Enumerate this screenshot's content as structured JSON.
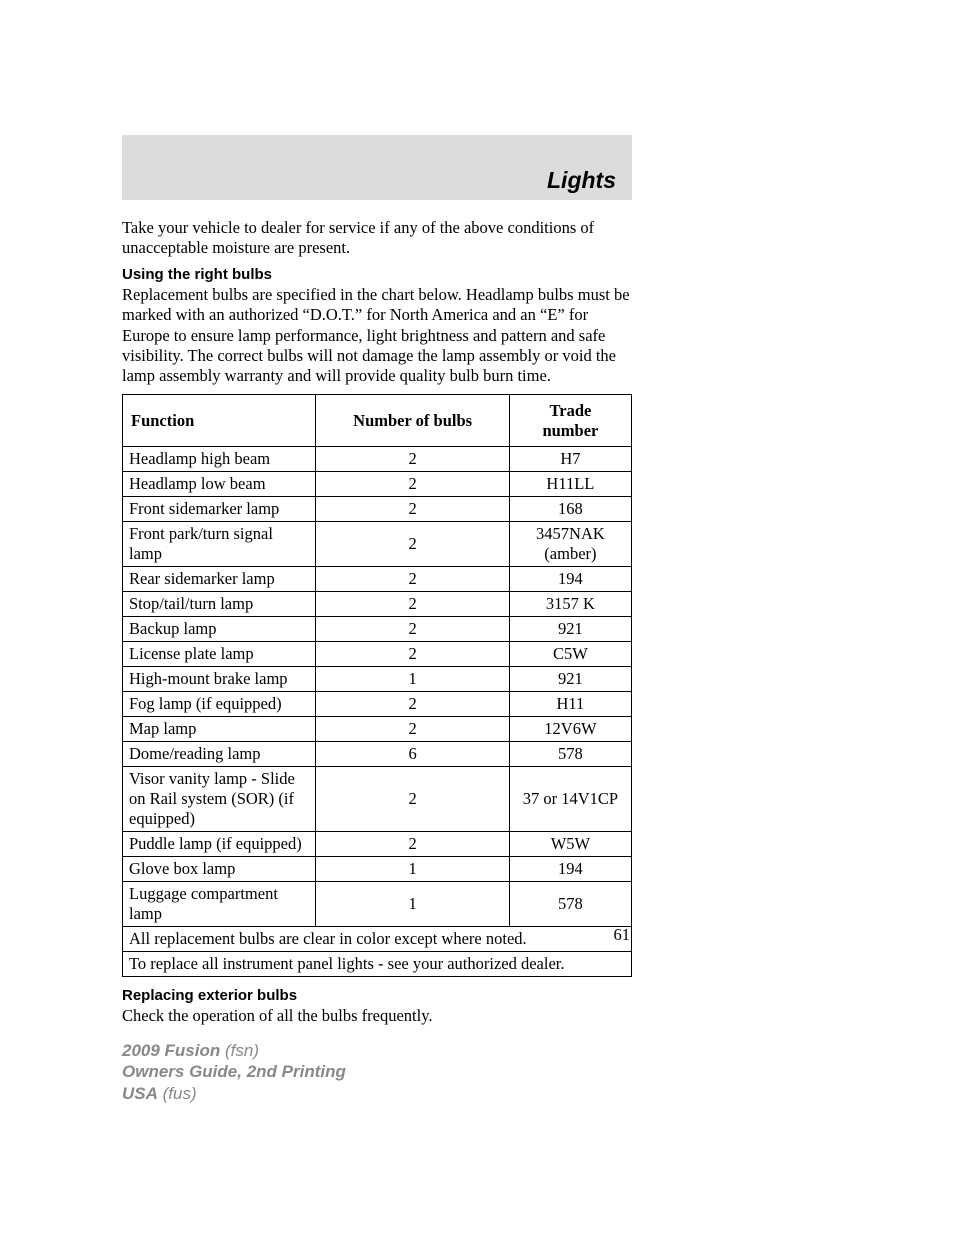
{
  "header": {
    "title": "Lights"
  },
  "intro": "Take your vehicle to dealer for service if any of the above conditions of unacceptable moisture are present.",
  "section1": {
    "heading": "Using the right bulbs",
    "body": "Replacement bulbs are specified in the chart below. Headlamp bulbs must be marked with an authorized “D.O.T.” for North America and an “E” for Europe to ensure lamp performance, light brightness and pattern and safe visibility. The correct bulbs will not damage the lamp assembly or void the lamp assembly warranty and will provide quality bulb burn time."
  },
  "table": {
    "columns": [
      "Function",
      "Number of bulbs",
      "Trade number"
    ],
    "rows": [
      [
        "Headlamp high beam",
        "2",
        "H7"
      ],
      [
        "Headlamp low beam",
        "2",
        "H11LL"
      ],
      [
        "Front sidemarker lamp",
        "2",
        "168"
      ],
      [
        "Front park/turn signal lamp",
        "2",
        "3457NAK (amber)"
      ],
      [
        "Rear sidemarker lamp",
        "2",
        "194"
      ],
      [
        "Stop/tail/turn lamp",
        "2",
        "3157 K"
      ],
      [
        "Backup lamp",
        "2",
        "921"
      ],
      [
        "License plate lamp",
        "2",
        "C5W"
      ],
      [
        "High-mount brake lamp",
        "1",
        "921"
      ],
      [
        "Fog lamp (if equipped)",
        "2",
        "H11"
      ],
      [
        "Map lamp",
        "2",
        "12V6W"
      ],
      [
        "Dome/reading lamp",
        "6",
        "578"
      ],
      [
        "Visor vanity lamp - Slide on Rail system (SOR) (if equipped)",
        "2",
        "37 or 14V1CP"
      ],
      [
        "Puddle lamp (if equipped)",
        "2",
        "W5W"
      ],
      [
        "Glove box lamp",
        "1",
        "194"
      ],
      [
        "Luggage compartment lamp",
        "1",
        "578"
      ]
    ],
    "notes": [
      "All replacement bulbs are clear in color except where noted.",
      "To replace all instrument panel lights - see your authorized dealer."
    ]
  },
  "section2": {
    "heading": "Replacing exterior bulbs",
    "body": "Check the operation of all the bulbs frequently."
  },
  "page_number": "61",
  "footer": {
    "line1_bold": "2009 Fusion",
    "line1_rest": " (fsn)",
    "line2": "Owners Guide, 2nd Printing",
    "line3_bold": "USA",
    "line3_rest": " (fus)"
  }
}
